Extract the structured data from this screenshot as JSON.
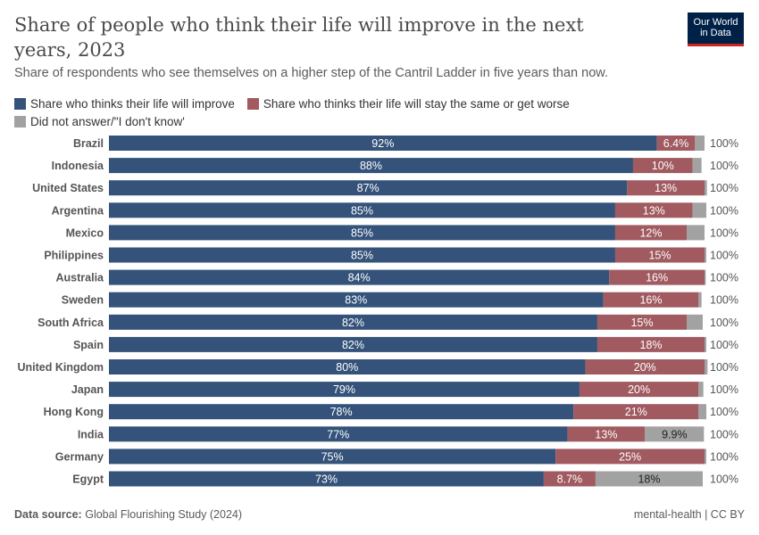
{
  "header": {
    "title": "Share of people who think their life will improve in the next years, 2023",
    "subtitle": "Share of respondents who see themselves on a higher step of the Cantril Ladder in five years than now.",
    "logo": "Our World in Data"
  },
  "footer": {
    "source_label": "Data source:",
    "source": "Global Flourishing Study (2024)",
    "right": "mental-health | CC BY"
  },
  "chart_data": {
    "type": "bar",
    "orientation": "horizontal",
    "stacked": true,
    "xlim": [
      0,
      100
    ],
    "legend_placement": "top",
    "categories": [
      "Brazil",
      "Indonesia",
      "United States",
      "Argentina",
      "Mexico",
      "Philippines",
      "Australia",
      "Sweden",
      "South Africa",
      "Spain",
      "United Kingdom",
      "Japan",
      "Hong Kong",
      "India",
      "Germany",
      "Egypt"
    ],
    "series": [
      {
        "name": "Share who thinks their life will improve",
        "color": "#34527a",
        "values": [
          92,
          88,
          87,
          85,
          85,
          85,
          84,
          83,
          82,
          82,
          80,
          79,
          78,
          77,
          75,
          73
        ],
        "labels": [
          "92%",
          "88%",
          "87%",
          "85%",
          "85%",
          "85%",
          "84%",
          "83%",
          "82%",
          "82%",
          "80%",
          "79%",
          "78%",
          "77%",
          "75%",
          "73%"
        ]
      },
      {
        "name": "Share who thinks their life will stay the same or get worse",
        "color": "#a05a60",
        "values": [
          6.4,
          10,
          13,
          13,
          12,
          15,
          16,
          16,
          15,
          18,
          20,
          20,
          21,
          13,
          25,
          8.7
        ],
        "labels": [
          "6.4%",
          "10%",
          "13%",
          "13%",
          "12%",
          "15%",
          "16%",
          "16%",
          "15%",
          "18%",
          "20%",
          "20%",
          "21%",
          "13%",
          "25%",
          "8.7%"
        ]
      },
      {
        "name": "Did not answer/\"I don't know'",
        "color": "#a2a2a2",
        "values": [
          1.6,
          1.5,
          0.4,
          2.3,
          3,
          0.3,
          0.2,
          0.5,
          2.7,
          0.3,
          0.5,
          0.8,
          1.3,
          9.9,
          0.3,
          18
        ],
        "labels": [
          "",
          "",
          "",
          "",
          "",
          "",
          "",
          "",
          "",
          "",
          "",
          "",
          "",
          "9.9%",
          "",
          "18%"
        ]
      }
    ],
    "totals": [
      "100%",
      "100%",
      "100%",
      "100%",
      "100%",
      "100%",
      "100%",
      "100%",
      "100%",
      "100%",
      "100%",
      "100%",
      "100%",
      "100%",
      "100%",
      "100%"
    ]
  }
}
